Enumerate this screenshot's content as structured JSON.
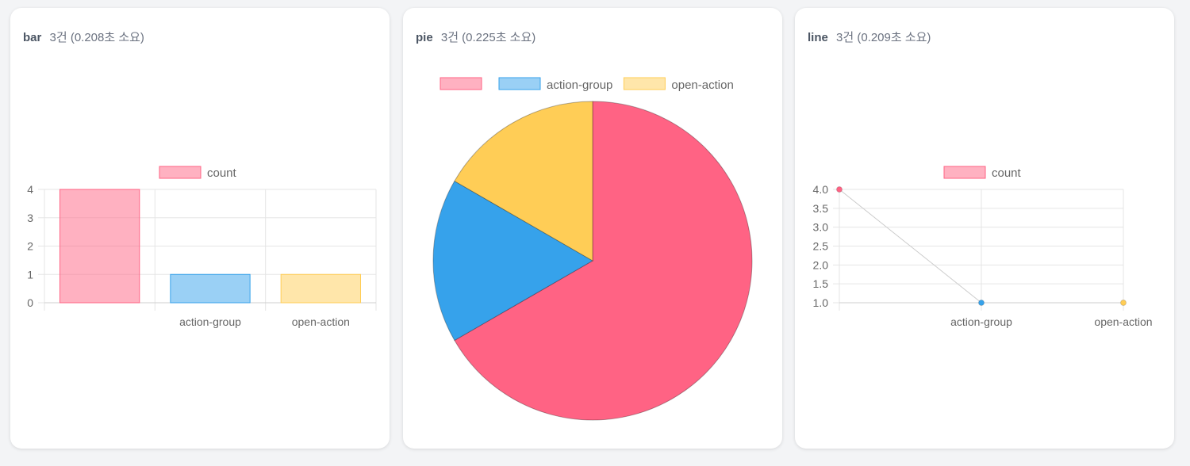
{
  "panels": [
    {
      "title": "bar",
      "meta": "3건 (0.208초 소요)",
      "chart_data": {
        "type": "bar",
        "categories": [
          "",
          "action-group",
          "open-action"
        ],
        "series": [
          {
            "name": "count",
            "values": [
              4,
              1,
              1
            ]
          }
        ],
        "ylim": [
          0,
          4
        ],
        "yticks": [
          "0",
          "1",
          "2",
          "3",
          "4"
        ],
        "grid": true,
        "legend": "top",
        "colors": [
          "#ff6384",
          "#36a2eb",
          "#ffcd56"
        ]
      }
    },
    {
      "title": "pie",
      "meta": "3건 (0.225초 소요)",
      "chart_data": {
        "type": "pie",
        "categories": [
          "",
          "action-group",
          "open-action"
        ],
        "values": [
          4,
          1,
          1
        ],
        "legend": "top",
        "colors": [
          "#ff6384",
          "#36a2eb",
          "#ffcd56"
        ]
      }
    },
    {
      "title": "line",
      "meta": "3건 (0.209초 소요)",
      "chart_data": {
        "type": "line",
        "categories": [
          "",
          "action-group",
          "open-action"
        ],
        "series": [
          {
            "name": "count",
            "values": [
              4,
              1,
              1
            ]
          }
        ],
        "ylim": [
          1,
          4
        ],
        "yticks": [
          "1.0",
          "1.5",
          "2.0",
          "2.5",
          "3.0",
          "3.5",
          "4.0"
        ],
        "grid": true,
        "legend": "top",
        "colors": [
          "#ff6384",
          "#36a2eb",
          "#ffcd56"
        ]
      }
    }
  ]
}
